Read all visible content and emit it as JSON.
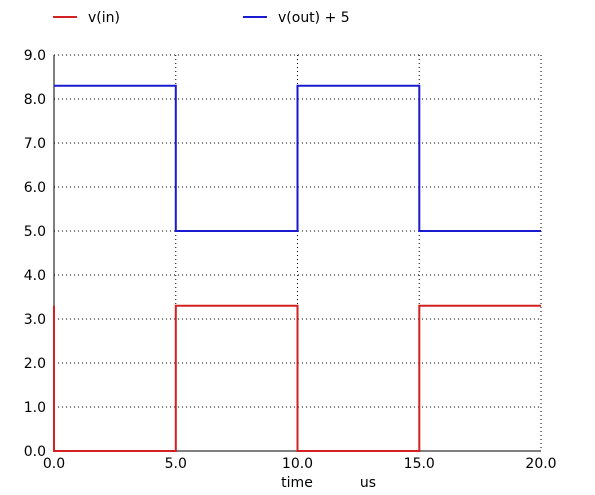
{
  "chart_data": {
    "type": "line",
    "xlabel": "time",
    "xunit": "us",
    "xlim": [
      0,
      20
    ],
    "ylim": [
      0,
      9
    ],
    "x_ticks": [
      "0.0",
      "5.0",
      "10.0",
      "15.0",
      "20.0"
    ],
    "y_ticks": [
      "0.0",
      "1.0",
      "2.0",
      "3.0",
      "4.0",
      "5.0",
      "6.0",
      "7.0",
      "8.0",
      "9.0"
    ],
    "grid": true,
    "legend_position": "top",
    "series": [
      {
        "name": "v(in)",
        "color": "#d42020",
        "points": [
          [
            0,
            3.3
          ],
          [
            0,
            0
          ],
          [
            5,
            0
          ],
          [
            5,
            3.3
          ],
          [
            10,
            3.3
          ],
          [
            10,
            0
          ],
          [
            15,
            0
          ],
          [
            15,
            3.3
          ],
          [
            20,
            3.3
          ]
        ]
      },
      {
        "name": "v(out) + 5",
        "color": "#1a1ad0",
        "points": [
          [
            0,
            8.3
          ],
          [
            5,
            8.3
          ],
          [
            5,
            5
          ],
          [
            10,
            5
          ],
          [
            10,
            8.3
          ],
          [
            15,
            8.3
          ],
          [
            15,
            5
          ],
          [
            20,
            5
          ]
        ]
      }
    ]
  }
}
